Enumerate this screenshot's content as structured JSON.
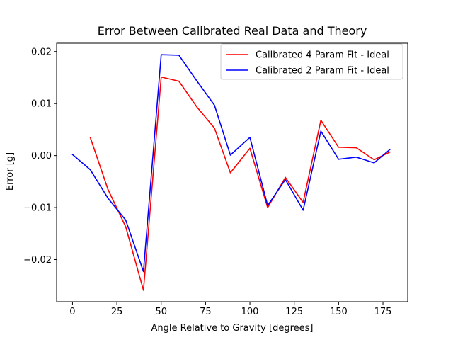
{
  "chart_data": {
    "type": "line",
    "title": "Error Between Calibrated Real Data and Theory",
    "xlabel": "Angle Relative to Gravity [degrees]",
    "ylabel": "Error [g]",
    "xlim": [
      -8.95,
      188.95
    ],
    "ylim": [
      -0.0281,
      0.0216
    ],
    "xticks": [
      0,
      25,
      50,
      75,
      100,
      125,
      150,
      175
    ],
    "xtick_labels": [
      "0",
      "25",
      "50",
      "75",
      "100",
      "125",
      "150",
      "175"
    ],
    "yticks": [
      -0.02,
      -0.01,
      0.0,
      0.01,
      0.02
    ],
    "ytick_labels": [
      "−0.02",
      "−0.01",
      "0.00",
      "0.01",
      "0.02"
    ],
    "grid": false,
    "legend_position": "top-right",
    "series": [
      {
        "name": "Calibrated 4 Param Fit - Ideal",
        "color": "#ff0000",
        "x": [
          10,
          20,
          30,
          40,
          50,
          60,
          70,
          80,
          89,
          100,
          110,
          120,
          130,
          140,
          150,
          160,
          170,
          179
        ],
        "y": [
          0.0035,
          -0.0065,
          -0.0137,
          -0.0259,
          0.0151,
          0.0143,
          0.0094,
          0.0053,
          -0.0033,
          0.0014,
          -0.01,
          -0.0042,
          -0.009,
          0.0068,
          0.0016,
          0.0015,
          -0.0008,
          0.0007
        ]
      },
      {
        "name": "Calibrated 2 Param Fit - Ideal",
        "color": "#0000ff",
        "x": [
          0,
          10,
          20,
          30,
          40,
          50,
          60,
          70,
          80,
          89,
          100,
          110,
          120,
          130,
          140,
          150,
          160,
          170,
          179
        ],
        "y": [
          0.0002,
          -0.0027,
          -0.0082,
          -0.0124,
          -0.0223,
          0.0194,
          0.0193,
          0.0144,
          0.0097,
          0.0001,
          0.0035,
          -0.0096,
          -0.0046,
          -0.0105,
          0.0047,
          -0.0007,
          -0.0003,
          -0.0014,
          0.0012
        ]
      }
    ]
  }
}
